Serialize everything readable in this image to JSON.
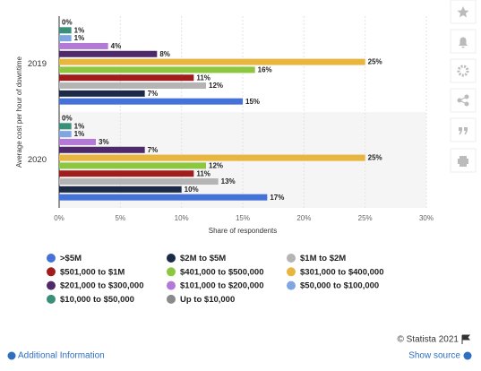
{
  "chart_data": {
    "type": "bar",
    "orientation": "horizontal",
    "ylabel": "Average cost per hour of downtime",
    "xlabel": "Share of respondents",
    "categories": [
      "2019",
      "2020"
    ],
    "series": [
      {
        "name": ">$5M",
        "color": "#4472d8",
        "values": [
          15,
          17
        ],
        "value_labels": [
          "15%",
          "17%"
        ]
      },
      {
        "name": "$2M to $5M",
        "color": "#1c2a48",
        "values": [
          7,
          10
        ],
        "value_labels": [
          "7%",
          "10%"
        ]
      },
      {
        "name": "$1M to $2M",
        "color": "#b4b4b4",
        "values": [
          12,
          13
        ],
        "value_labels": [
          "12%",
          "13%"
        ]
      },
      {
        "name": "$501,000 to $1M",
        "color": "#a11d1d",
        "values": [
          11,
          11
        ],
        "value_labels": [
          "11%",
          "11%"
        ]
      },
      {
        "name": "$401,000 to $500,000",
        "color": "#8dc63f",
        "values": [
          16,
          12
        ],
        "value_labels": [
          "16%",
          "12%"
        ]
      },
      {
        "name": "$301,000 to $400,000",
        "color": "#e8b53f",
        "values": [
          25,
          25
        ],
        "value_labels": [
          "25%",
          "25%"
        ]
      },
      {
        "name": "$201,000 to $300,000",
        "color": "#4e2a6a",
        "values": [
          8,
          7
        ],
        "value_labels": [
          "8%",
          "7%"
        ]
      },
      {
        "name": "$101,000 to $200,000",
        "color": "#b27ad6",
        "values": [
          4,
          3
        ],
        "value_labels": [
          "4%",
          "3%"
        ]
      },
      {
        "name": "$50,000 to $100,000",
        "color": "#7fa6e0",
        "values": [
          1,
          1
        ],
        "value_labels": [
          "1%",
          "1%"
        ]
      },
      {
        "name": "$10,000 to $50,000",
        "color": "#3a8f7a",
        "values": [
          1,
          1
        ],
        "value_labels": [
          "1%",
          "1%"
        ]
      },
      {
        "name": "Up to $10,000",
        "color": "#8a8a8a",
        "values": [
          0,
          0
        ],
        "value_labels": [
          "0%",
          "0%"
        ]
      }
    ],
    "xlim": [
      0,
      30
    ],
    "xticks": [
      {
        "value": 0,
        "label": "0%"
      },
      {
        "value": 5,
        "label": "5%"
      },
      {
        "value": 10,
        "label": "10%"
      },
      {
        "value": 15,
        "label": "15%"
      },
      {
        "value": 20,
        "label": "20%"
      },
      {
        "value": 25,
        "label": "25%"
      },
      {
        "value": 30,
        "label": "30%"
      }
    ],
    "grid": true
  },
  "footer": {
    "copyright": "© Statista 2021",
    "additional_info": "Additional Information",
    "show_source": "Show source"
  }
}
